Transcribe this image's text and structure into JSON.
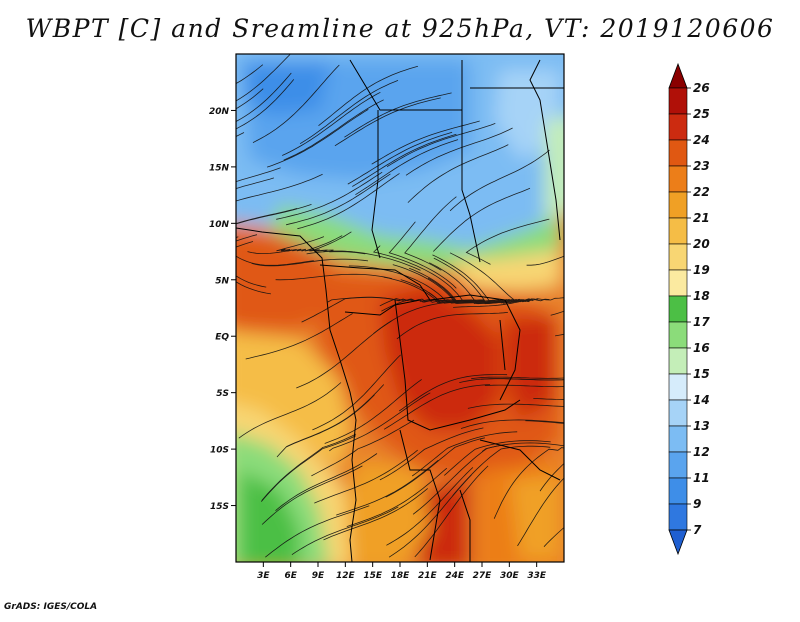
{
  "title": "WBPT [C] and Sreamline at 925hPa, VT: 2019120606",
  "footer": "GrADS: IGES/COLA",
  "map": {
    "lon_range": [
      0,
      36
    ],
    "lat_range": [
      -20,
      25
    ],
    "lat_ticks": [
      {
        "value": 20,
        "label": "20N"
      },
      {
        "value": 15,
        "label": "15N"
      },
      {
        "value": 10,
        "label": "10N"
      },
      {
        "value": 5,
        "label": "5N"
      },
      {
        "value": 0,
        "label": "EQ"
      },
      {
        "value": -5,
        "label": "5S"
      },
      {
        "value": -10,
        "label": "10S"
      },
      {
        "value": -15,
        "label": "15S"
      }
    ],
    "lon_ticks": [
      {
        "value": 3,
        "label": "3E"
      },
      {
        "value": 6,
        "label": "6E"
      },
      {
        "value": 9,
        "label": "9E"
      },
      {
        "value": 12,
        "label": "12E"
      },
      {
        "value": 15,
        "label": "15E"
      },
      {
        "value": 18,
        "label": "18E"
      },
      {
        "value": 21,
        "label": "21E"
      },
      {
        "value": 24,
        "label": "24E"
      },
      {
        "value": 27,
        "label": "27E"
      },
      {
        "value": 30,
        "label": "30E"
      },
      {
        "value": 33,
        "label": "33E"
      }
    ]
  },
  "colorbar": {
    "labels": [
      "7",
      "9",
      "11",
      "12",
      "13",
      "14",
      "15",
      "16",
      "17",
      "18",
      "19",
      "20",
      "21",
      "22",
      "23",
      "24",
      "25",
      "26"
    ],
    "colors": [
      "#1f5fd1",
      "#2f78e0",
      "#3e8ee8",
      "#5aa4ee",
      "#7cbcf3",
      "#a6d3f7",
      "#d6ecfb",
      "#c4eeb8",
      "#8bdc7a",
      "#4cbf45",
      "#fbeaa0",
      "#f8d673",
      "#f5bd46",
      "#f0a025",
      "#ec7e19",
      "#e05812",
      "#cc2b10",
      "#b01008",
      "#8a0000"
    ]
  }
}
